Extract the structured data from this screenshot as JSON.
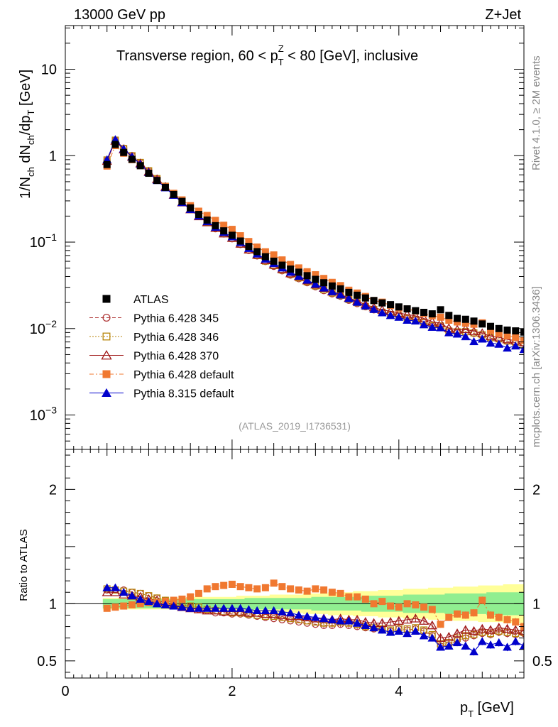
{
  "header": {
    "left": "13000 GeV pp",
    "right": "Z+Jet"
  },
  "side": {
    "top": "Rivet 4.1.0, ≥ 2M events",
    "bottom": "mcplots.cern.ch [arXiv:1306.3436]"
  },
  "chart_data": {
    "type": "scatter",
    "title": "Transverse region, 60 < p_T^Z < 80 [GeV], inclusive",
    "xlabel": "p_T [GeV]",
    "ylabel": "1/N_ch dN_ch/dp_T [GeV]",
    "ratio_ylabel": "Ratio to ATLAS",
    "analysis_tag": "(ATLAS_2019_I1736531)",
    "xlim": [
      0,
      5.5
    ],
    "ylim": [
      0.0004,
      32
    ],
    "ratio_ylim": [
      0.35,
      2.35
    ],
    "x_ticks": [
      "0",
      "2",
      "4"
    ],
    "y_ticks": [
      "10^-3",
      "10^-2",
      "10^-1",
      "1",
      "10"
    ],
    "ratio_ticks": [
      "0.5",
      "1",
      "2"
    ],
    "x": [
      0.5,
      0.6,
      0.7,
      0.8,
      0.9,
      1.0,
      1.1,
      1.2,
      1.3,
      1.4,
      1.5,
      1.6,
      1.7,
      1.8,
      1.9,
      2.0,
      2.1,
      2.2,
      2.3,
      2.4,
      2.5,
      2.6,
      2.7,
      2.8,
      2.9,
      3.0,
      3.1,
      3.2,
      3.3,
      3.4,
      3.5,
      3.6,
      3.7,
      3.8,
      3.9,
      4.0,
      4.1,
      4.2,
      4.3,
      4.4,
      4.5,
      4.6,
      4.7,
      4.8,
      4.9,
      5.0,
      5.1,
      5.2,
      5.3,
      5.4,
      5.5
    ],
    "atlas_values": [
      0.79,
      1.35,
      1.09,
      0.908,
      0.766,
      0.626,
      0.517,
      0.43,
      0.356,
      0.296,
      0.249,
      0.209,
      0.18,
      0.155,
      0.135,
      0.12,
      0.103,
      0.0891,
      0.0776,
      0.0678,
      0.0602,
      0.0541,
      0.0488,
      0.0449,
      0.0409,
      0.0371,
      0.0339,
      0.0311,
      0.0288,
      0.0262,
      0.0243,
      0.0226,
      0.0211,
      0.0198,
      0.0189,
      0.0178,
      0.0169,
      0.0161,
      0.0154,
      0.0148,
      0.0165,
      0.0142,
      0.0131,
      0.0128,
      0.0122,
      0.0113,
      0.0106,
      0.01,
      0.0096,
      0.0094,
      0.0091
    ],
    "atlas_band": {
      "inner_half_width": [
        0.04,
        0.04,
        0.04,
        0.04,
        0.04,
        0.04,
        0.04,
        0.04,
        0.04,
        0.04,
        0.04,
        0.04,
        0.04,
        0.04,
        0.04,
        0.04,
        0.04,
        0.05,
        0.05,
        0.05,
        0.05,
        0.05,
        0.05,
        0.05,
        0.05,
        0.06,
        0.06,
        0.06,
        0.06,
        0.06,
        0.06,
        0.07,
        0.07,
        0.07,
        0.07,
        0.07,
        0.08,
        0.08,
        0.08,
        0.08,
        0.08,
        0.09,
        0.09,
        0.09,
        0.09,
        0.09,
        0.1,
        0.1,
        0.1,
        0.1,
        0.1
      ],
      "outer_half_width": [
        0.05,
        0.05,
        0.05,
        0.05,
        0.05,
        0.05,
        0.05,
        0.05,
        0.05,
        0.05,
        0.06,
        0.06,
        0.06,
        0.06,
        0.06,
        0.06,
        0.07,
        0.07,
        0.07,
        0.07,
        0.08,
        0.08,
        0.08,
        0.08,
        0.09,
        0.09,
        0.09,
        0.1,
        0.1,
        0.1,
        0.11,
        0.11,
        0.11,
        0.12,
        0.12,
        0.12,
        0.13,
        0.13,
        0.13,
        0.14,
        0.14,
        0.14,
        0.15,
        0.15,
        0.15,
        0.16,
        0.16,
        0.16,
        0.17,
        0.17,
        0.17
      ],
      "inner_color": "#90ee90",
      "outer_color": "#ffff99"
    },
    "series": [
      {
        "name": "ATLAS",
        "marker": "square-filled",
        "color": "#000000",
        "line": "none",
        "reference": true
      },
      {
        "name": "Pythia 6.428 345",
        "marker": "circle-open",
        "color": "#b03838",
        "line": "dashed",
        "ratio": [
          1.12,
          1.12,
          1.12,
          1.1,
          1.09,
          1.07,
          1.05,
          1.03,
          1.01,
          0.99,
          0.97,
          0.95,
          0.94,
          0.92,
          0.92,
          0.91,
          0.91,
          0.9,
          0.89,
          0.88,
          0.87,
          0.86,
          0.85,
          0.84,
          0.83,
          0.82,
          0.81,
          0.81,
          0.82,
          0.81,
          0.8,
          0.79,
          0.78,
          0.77,
          0.76,
          0.78,
          0.77,
          0.78,
          0.76,
          0.72,
          0.63,
          0.64,
          0.68,
          0.7,
          0.72,
          0.74,
          0.73,
          0.75,
          0.74,
          0.73,
          0.74
        ]
      },
      {
        "name": "Pythia 6.428 346",
        "marker": "square-open",
        "color": "#b8860b",
        "line": "dotted",
        "ratio": [
          1.13,
          1.12,
          1.11,
          1.1,
          1.09,
          1.07,
          1.05,
          1.03,
          1.01,
          0.99,
          0.98,
          0.97,
          0.95,
          0.94,
          0.93,
          0.92,
          0.92,
          0.91,
          0.9,
          0.89,
          0.89,
          0.88,
          0.87,
          0.86,
          0.85,
          0.84,
          0.83,
          0.83,
          0.84,
          0.83,
          0.82,
          0.8,
          0.79,
          0.78,
          0.77,
          0.79,
          0.78,
          0.79,
          0.77,
          0.73,
          0.65,
          0.66,
          0.7,
          0.72,
          0.73,
          0.75,
          0.74,
          0.76,
          0.75,
          0.74,
          0.75
        ]
      },
      {
        "name": "Pythia 6.428 370",
        "marker": "triangle-open",
        "color": "#a01818",
        "line": "solid",
        "ratio": [
          1.1,
          1.1,
          1.08,
          1.07,
          1.06,
          1.04,
          1.03,
          1.01,
          0.99,
          0.97,
          0.96,
          0.95,
          0.94,
          0.94,
          0.93,
          0.93,
          0.93,
          0.92,
          0.92,
          0.91,
          0.91,
          0.9,
          0.89,
          0.89,
          0.88,
          0.87,
          0.87,
          0.86,
          0.87,
          0.86,
          0.86,
          0.84,
          0.83,
          0.83,
          0.84,
          0.85,
          0.86,
          0.87,
          0.85,
          0.81,
          0.7,
          0.71,
          0.74,
          0.77,
          0.76,
          0.78,
          0.77,
          0.79,
          0.78,
          0.77,
          0.76
        ]
      },
      {
        "name": "Pythia 6.428 default",
        "marker": "square-filled",
        "color": "#f07830",
        "line": "dashdot",
        "ratio": [
          0.96,
          0.97,
          0.98,
          0.99,
          1.0,
          1.01,
          1.01,
          1.02,
          1.03,
          1.04,
          1.06,
          1.09,
          1.13,
          1.15,
          1.16,
          1.17,
          1.15,
          1.14,
          1.13,
          1.14,
          1.18,
          1.15,
          1.13,
          1.12,
          1.11,
          1.13,
          1.12,
          1.1,
          1.09,
          1.06,
          1.06,
          1.04,
          1.0,
          1.02,
          0.98,
          0.97,
          1.0,
          0.99,
          0.97,
          0.95,
          0.82,
          0.88,
          0.91,
          0.9,
          0.92,
          1.03,
          0.9,
          0.88,
          0.86,
          0.84,
          0.8
        ]
      },
      {
        "name": "Pythia 8.315 default",
        "marker": "triangle-filled",
        "color": "#0000cc",
        "line": "solid",
        "ratio": [
          1.14,
          1.14,
          1.1,
          1.07,
          1.04,
          1.02,
          1.0,
          0.99,
          0.98,
          0.97,
          0.96,
          0.96,
          0.96,
          0.96,
          0.96,
          0.96,
          0.96,
          0.95,
          0.94,
          0.94,
          0.94,
          0.93,
          0.92,
          0.9,
          0.89,
          0.88,
          0.87,
          0.86,
          0.85,
          0.85,
          0.83,
          0.81,
          0.79,
          0.77,
          0.75,
          0.76,
          0.74,
          0.76,
          0.72,
          0.7,
          0.62,
          0.63,
          0.66,
          0.63,
          0.58,
          0.67,
          0.64,
          0.66,
          0.62,
          0.67,
          0.63
        ]
      }
    ]
  }
}
